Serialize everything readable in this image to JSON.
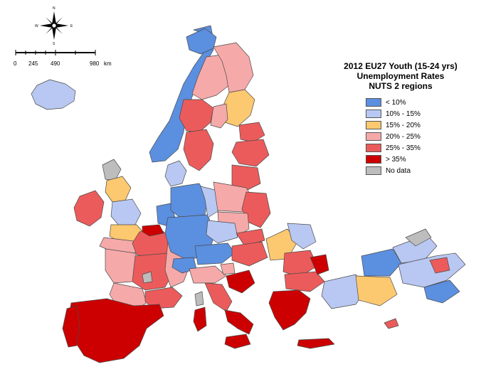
{
  "legend": {
    "title_line1": "2012 EU27 Youth (15-24 yrs)",
    "title_line2": "Unemployment Rates",
    "title_line3": "NUTS 2 regions",
    "items": [
      {
        "label": "< 10%",
        "color": "#5b8fe0"
      },
      {
        "label": "10% - 15%",
        "color": "#b9c8f2"
      },
      {
        "label": "15% - 20%",
        "color": "#fcc870"
      },
      {
        "label": "20% - 25%",
        "color": "#f6a9a9"
      },
      {
        "label": "25% - 35%",
        "color": "#ec5b5b"
      },
      {
        "label": "> 35%",
        "color": "#cc0000"
      },
      {
        "label": "No data",
        "color": "#bdbdbd"
      }
    ]
  },
  "scale_bar": {
    "labels": [
      "0",
      "245",
      "490",
      "980"
    ],
    "unit": "km"
  },
  "compass": {
    "n": "N",
    "s": "S",
    "e": "E",
    "w": "W"
  }
}
